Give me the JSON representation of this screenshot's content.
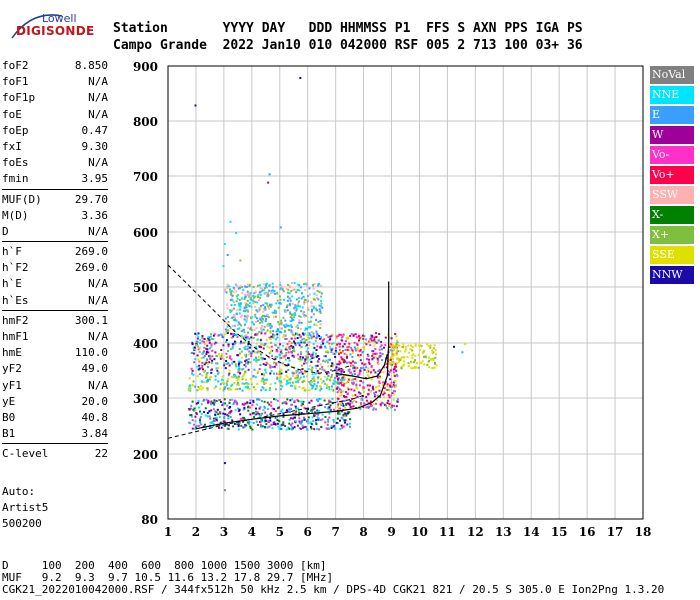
{
  "logo": {
    "brand": "Lowell",
    "name": "DIGISONDE"
  },
  "header": {
    "labels_line": "Station       YYYY DAY   DDD HHMMSS P1  FFS S AXN PPS IGA PS",
    "values_line": "Campo Grande  2022 Jan10 010 042000 RSF 005 2 713 100 03+ 36"
  },
  "params": {
    "group1": [
      {
        "label": "foF2",
        "value": "8.850"
      },
      {
        "label": "foF1",
        "value": "N/A"
      },
      {
        "label": "foF1p",
        "value": "N/A"
      },
      {
        "label": "foE",
        "value": "N/A"
      },
      {
        "label": "foEp",
        "value": "0.47"
      },
      {
        "label": "fxI",
        "value": "9.30"
      },
      {
        "label": "foEs",
        "value": "N/A"
      },
      {
        "label": "fmin",
        "value": "3.95"
      }
    ],
    "group2": [
      {
        "label": "MUF(D)",
        "value": "29.70"
      },
      {
        "label": "M(D)",
        "value": "3.36"
      },
      {
        "label": "D",
        "value": "N/A"
      }
    ],
    "group3": [
      {
        "label": "h`F",
        "value": "269.0"
      },
      {
        "label": "h`F2",
        "value": "269.0"
      },
      {
        "label": "h`E",
        "value": "N/A"
      },
      {
        "label": "h`Es",
        "value": "N/A"
      }
    ],
    "group4": [
      {
        "label": "hmF2",
        "value": "300.1"
      },
      {
        "label": "hmF1",
        "value": "N/A"
      },
      {
        "label": "hmE",
        "value": "110.0"
      },
      {
        "label": "yF2",
        "value": "49.0"
      },
      {
        "label": "yF1",
        "value": "N/A"
      },
      {
        "label": "yE",
        "value": "20.0"
      },
      {
        "label": "B0",
        "value": "40.8"
      },
      {
        "label": "B1",
        "value": "3.84"
      }
    ],
    "group5": [
      {
        "label": "C-level",
        "value": "22"
      }
    ]
  },
  "auto": {
    "line1": "Auto:",
    "line2": "Artist5",
    "line3": "500200"
  },
  "legend": [
    {
      "label": "NoVal",
      "color": "#808080"
    },
    {
      "label": "NNE",
      "color": "#00e5ff"
    },
    {
      "label": "E",
      "color": "#3aa0ff"
    },
    {
      "label": "W",
      "color": "#a0009a"
    },
    {
      "label": "Vo-",
      "color": "#ff30c8"
    },
    {
      "label": "Vo+",
      "color": "#ff004a"
    },
    {
      "label": "SSW",
      "color": "#ffb0b0"
    },
    {
      "label": "X-",
      "color": "#008000"
    },
    {
      "label": "X+",
      "color": "#7fbf40"
    },
    {
      "label": "SSE",
      "color": "#e0e000"
    },
    {
      "label": "NNW",
      "color": "#1a0aa8"
    }
  ],
  "footer": {
    "line1": "D     100  200  400  600  800 1000 1500 3000 [km]",
    "line2": "MUF   9.2  9.3  9.7 10.5 11.6 13.2 17.8 29.7 [MHz]",
    "line3": "CGK21_2022010042000.RSF / 344fx512h 50 kHz 2.5 km / DPS-4D CGK21 821 / 20.5 S 305.0 E Ion2Png 1.3.20"
  },
  "chart_data": {
    "type": "scatter",
    "xlim": [
      1,
      18
    ],
    "ylim": [
      80,
      900
    ],
    "x_ticks": [
      "1",
      "2",
      "3",
      "4",
      "5",
      "6",
      "7",
      "8",
      "9",
      "10",
      "11",
      "12",
      "13",
      "14",
      "15",
      "16",
      "17",
      "18"
    ],
    "y_ticks": [
      {
        "value": 80,
        "label": "80"
      },
      {
        "value": 200,
        "label": "200"
      },
      {
        "value": 300,
        "label": "300"
      },
      {
        "value": 400,
        "label": "400"
      },
      {
        "value": 500,
        "label": "500"
      },
      {
        "value": 600,
        "label": "600"
      },
      {
        "value": 700,
        "label": "700"
      },
      {
        "value": 800,
        "label": "800"
      },
      {
        "value": 900,
        "label": "900"
      }
    ],
    "grid": true,
    "echo_bands": [
      {
        "x0": 1.7,
        "x1": 7.3,
        "y0": 315,
        "y1": 345,
        "palette": [
          "#e0e000",
          "#e0e000",
          "#00e5ff",
          "#3aa0ff",
          "#7fbf40"
        ]
      },
      {
        "x0": 1.8,
        "x1": 7.0,
        "y0": 345,
        "y1": 420,
        "palette": [
          "#00e5ff",
          "#3aa0ff",
          "#a0009a",
          "#ff30c8",
          "#e0e000",
          "#1a0aa8",
          "#7fbf40"
        ]
      },
      {
        "x0": 1.7,
        "x1": 7.5,
        "y0": 245,
        "y1": 300,
        "palette": [
          "#3aa0ff",
          "#00e5ff",
          "#a0009a",
          "#ff30c8",
          "#1a0aa8",
          "#008000"
        ]
      },
      {
        "x0": 7.0,
        "x1": 9.2,
        "y0": 280,
        "y1": 420,
        "palette": [
          "#ff004a",
          "#a0009a",
          "#ff30c8",
          "#e0e000",
          "#3aa0ff"
        ]
      },
      {
        "x0": 8.9,
        "x1": 10.6,
        "y0": 355,
        "y1": 400,
        "palette": [
          "#e0e000",
          "#7fbf40",
          "#e0e000"
        ]
      },
      {
        "x0": 3.0,
        "x1": 6.5,
        "y0": 420,
        "y1": 510,
        "palette": [
          "#00e5ff",
          "#3aa0ff",
          "#ffb0b0",
          "#7fbf40"
        ]
      }
    ],
    "sparse_points": [
      {
        "x": 1.95,
        "y": 830,
        "color": "#1a0aa8"
      },
      {
        "x": 5.7,
        "y": 880,
        "color": "#1a0aa8"
      },
      {
        "x": 4.6,
        "y": 705,
        "color": "#3aa0ff"
      },
      {
        "x": 4.55,
        "y": 690,
        "color": "#a0009a"
      },
      {
        "x": 5.0,
        "y": 610,
        "color": "#3aa0ff"
      },
      {
        "x": 3.2,
        "y": 620,
        "color": "#00e5ff"
      },
      {
        "x": 3.4,
        "y": 600,
        "color": "#00e5ff"
      },
      {
        "x": 3.0,
        "y": 580,
        "color": "#00e5ff"
      },
      {
        "x": 3.1,
        "y": 560,
        "color": "#3aa0ff"
      },
      {
        "x": 2.95,
        "y": 540,
        "color": "#00e5ff"
      },
      {
        "x": 3.55,
        "y": 550,
        "color": "#7fbf40"
      },
      {
        "x": 3.0,
        "y": 185,
        "color": "#1a0aa8"
      },
      {
        "x": 3.0,
        "y": 135,
        "color": "#808080"
      },
      {
        "x": 11.2,
        "y": 395,
        "color": "#1a0aa8"
      },
      {
        "x": 11.5,
        "y": 385,
        "color": "#3aa0ff"
      },
      {
        "x": 11.6,
        "y": 400,
        "color": "#e0e000"
      }
    ],
    "curves": {
      "dashed_upper": [
        [
          1,
          540
        ],
        [
          1.6,
          510
        ],
        [
          2.2,
          480
        ],
        [
          2.8,
          450
        ],
        [
          3.4,
          420
        ],
        [
          4.0,
          395
        ],
        [
          4.6,
          375
        ],
        [
          5.2,
          360
        ],
        [
          5.8,
          350
        ],
        [
          6.4,
          345
        ],
        [
          7.0,
          350
        ],
        [
          7.6,
          360
        ]
      ],
      "dashed_lower": [
        [
          1,
          228
        ],
        [
          2,
          240
        ],
        [
          3,
          252
        ],
        [
          4,
          262
        ],
        [
          5,
          272
        ],
        [
          6,
          282
        ],
        [
          7,
          292
        ],
        [
          7.6,
          298
        ],
        [
          8.0,
          305
        ]
      ],
      "solid_lower": [
        [
          2.0,
          245
        ],
        [
          3.0,
          255
        ],
        [
          4.0,
          262
        ],
        [
          5.0,
          268
        ],
        [
          6.0,
          272
        ],
        [
          7.0,
          276
        ],
        [
          7.8,
          282
        ],
        [
          8.3,
          292
        ],
        [
          8.6,
          305
        ],
        [
          8.85,
          340
        ],
        [
          8.9,
          400
        ],
        [
          8.9,
          510
        ]
      ],
      "solid_upper": [
        [
          7.0,
          345
        ],
        [
          7.6,
          340
        ],
        [
          8.1,
          335
        ],
        [
          8.5,
          340
        ],
        [
          8.75,
          360
        ],
        [
          8.85,
          380
        ]
      ]
    }
  }
}
